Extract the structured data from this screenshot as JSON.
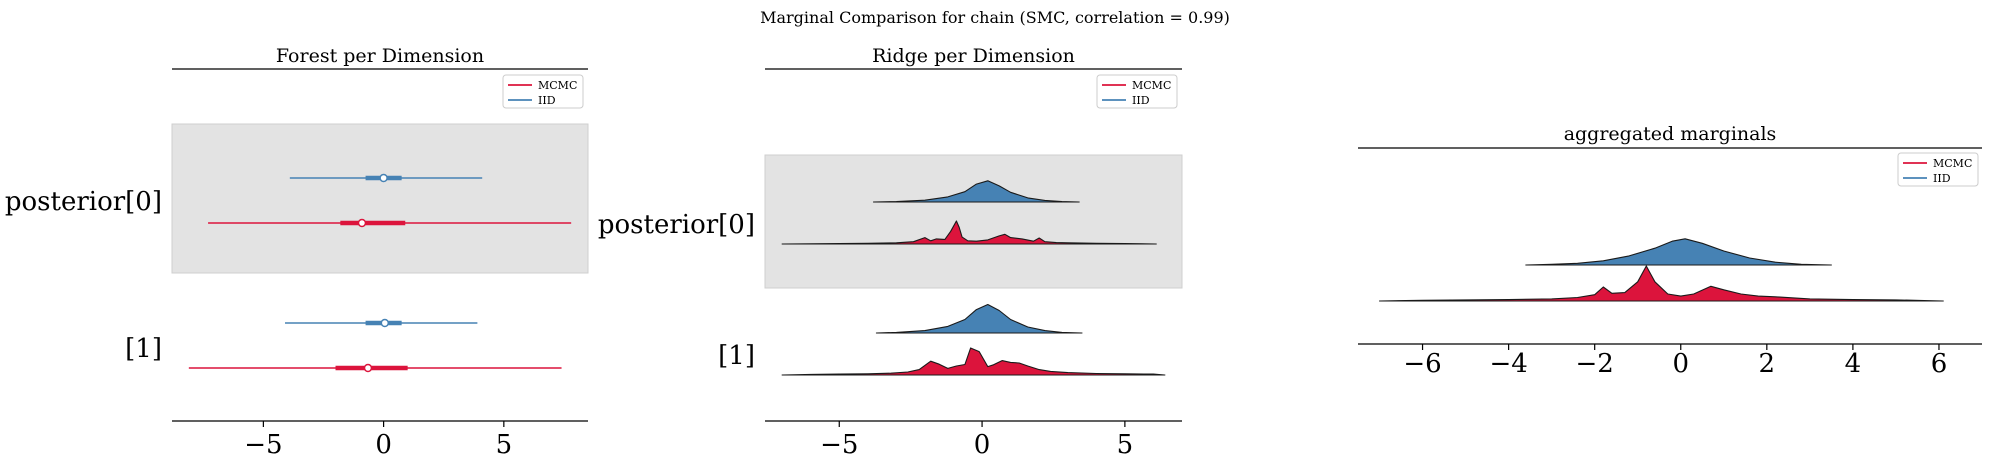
{
  "figure_title": "Marginal Comparison for chain (SMC, correlation = 0.99)",
  "colors": {
    "mcmc": "#dc143c",
    "iid": "#4682b4",
    "band": "#e3e3e3",
    "outline": "#1a1a1a"
  },
  "legend": {
    "mcmc": "MCMC",
    "iid": "IID"
  },
  "chart_data": [
    {
      "type": "forest",
      "title": "Forest per Dimension",
      "xlim": [
        -8.8,
        8.5
      ],
      "xticks": [
        -5,
        0,
        5
      ],
      "xtick_labels": [
        "−5",
        "0",
        "5"
      ],
      "rows": [
        {
          "label": "posterior[0]",
          "shaded": true,
          "iid": {
            "median": 0.0,
            "iqr": [
              -0.75,
              0.75
            ],
            "range": [
              -3.9,
              4.1
            ]
          },
          "mcmc": {
            "median": -0.9,
            "iqr": [
              -1.8,
              0.9
            ],
            "range": [
              -7.3,
              7.8
            ]
          }
        },
        {
          "label": "[1]",
          "shaded": false,
          "iid": {
            "median": 0.05,
            "iqr": [
              -0.75,
              0.75
            ],
            "range": [
              -4.1,
              3.9
            ]
          },
          "mcmc": {
            "median": -0.65,
            "iqr": [
              -2.0,
              1.0
            ],
            "range": [
              -8.1,
              7.4
            ]
          }
        }
      ]
    },
    {
      "type": "ridge",
      "title": "Ridge per Dimension",
      "xlim": [
        -7.6,
        7.0
      ],
      "xticks": [
        -5,
        0,
        5
      ],
      "xtick_labels": [
        "−5",
        "0",
        "5"
      ],
      "rows": [
        {
          "label": "posterior[0]",
          "shaded": true,
          "iid": {
            "x": [
              -3.8,
              -3.0,
              -2.0,
              -1.2,
              -0.6,
              -0.2,
              0.2,
              0.6,
              1.0,
              1.6,
              2.2,
              2.8,
              3.4
            ],
            "y": [
              0.0,
              0.02,
              0.08,
              0.22,
              0.45,
              0.78,
              0.92,
              0.7,
              0.42,
              0.18,
              0.07,
              0.02,
              0.0
            ]
          },
          "mcmc": {
            "x": [
              -7.0,
              -6.0,
              -5.0,
              -4.0,
              -3.0,
              -2.4,
              -2.0,
              -1.8,
              -1.6,
              -1.3,
              -1.1,
              -0.9,
              -0.8,
              -0.7,
              -0.5,
              -0.2,
              0.2,
              0.6,
              0.8,
              1.0,
              1.4,
              1.8,
              2.0,
              2.2,
              2.6,
              3.0,
              4.0,
              5.0,
              6.1
            ],
            "y": [
              0.0,
              0.01,
              0.02,
              0.03,
              0.05,
              0.1,
              0.28,
              0.14,
              0.22,
              0.2,
              0.55,
              1.0,
              0.72,
              0.3,
              0.14,
              0.12,
              0.18,
              0.35,
              0.42,
              0.28,
              0.22,
              0.12,
              0.26,
              0.1,
              0.06,
              0.05,
              0.03,
              0.02,
              0.0
            ]
          }
        },
        {
          "label": "[1]",
          "shaded": false,
          "iid": {
            "x": [
              -3.7,
              -3.0,
              -2.0,
              -1.2,
              -0.6,
              -0.2,
              0.2,
              0.6,
              1.0,
              1.6,
              2.2,
              2.8,
              3.5
            ],
            "y": [
              0.0,
              0.02,
              0.08,
              0.22,
              0.45,
              0.78,
              0.95,
              0.75,
              0.45,
              0.2,
              0.08,
              0.02,
              0.0
            ]
          },
          "mcmc": {
            "x": [
              -7.0,
              -6.0,
              -5.0,
              -4.0,
              -3.2,
              -2.6,
              -2.2,
              -1.8,
              -1.5,
              -1.2,
              -0.9,
              -0.6,
              -0.4,
              -0.1,
              0.2,
              0.4,
              0.7,
              1.0,
              1.3,
              1.6,
              2.0,
              2.4,
              3.0,
              4.0,
              5.0,
              6.0,
              6.4
            ],
            "y": [
              0.0,
              0.02,
              0.03,
              0.04,
              0.06,
              0.1,
              0.18,
              0.46,
              0.36,
              0.22,
              0.3,
              0.35,
              0.9,
              0.78,
              0.28,
              0.34,
              0.48,
              0.42,
              0.4,
              0.3,
              0.18,
              0.12,
              0.08,
              0.05,
              0.04,
              0.03,
              0.0
            ]
          }
        }
      ]
    },
    {
      "type": "ridge",
      "title": "aggregated marginals",
      "xlim": [
        -7.5,
        7.0
      ],
      "xticks": [
        -6,
        -4,
        -2,
        0,
        2,
        4,
        6
      ],
      "xtick_labels": [
        "−6",
        "−4",
        "−2",
        "0",
        "2",
        "4",
        "6"
      ],
      "rows": [
        {
          "label": "",
          "shaded": false,
          "iid": {
            "x": [
              -3.6,
              -3.0,
              -2.4,
              -1.8,
              -1.2,
              -0.6,
              -0.2,
              0.1,
              0.5,
              1.0,
              1.6,
              2.2,
              2.8,
              3.5
            ],
            "y": [
              0.0,
              0.02,
              0.05,
              0.12,
              0.26,
              0.48,
              0.68,
              0.75,
              0.62,
              0.4,
              0.2,
              0.08,
              0.02,
              0.0
            ]
          },
          "mcmc": {
            "x": [
              -7.0,
              -6.0,
              -5.0,
              -4.0,
              -3.0,
              -2.4,
              -2.0,
              -1.8,
              -1.6,
              -1.3,
              -1.0,
              -0.8,
              -0.6,
              -0.3,
              0.0,
              0.3,
              0.7,
              1.0,
              1.4,
              1.8,
              2.2,
              3.0,
              4.0,
              5.0,
              6.1
            ],
            "y": [
              0.0,
              0.02,
              0.03,
              0.04,
              0.06,
              0.1,
              0.18,
              0.4,
              0.22,
              0.24,
              0.55,
              1.0,
              0.55,
              0.2,
              0.14,
              0.2,
              0.42,
              0.32,
              0.2,
              0.14,
              0.12,
              0.06,
              0.04,
              0.03,
              0.0
            ]
          }
        }
      ]
    }
  ]
}
